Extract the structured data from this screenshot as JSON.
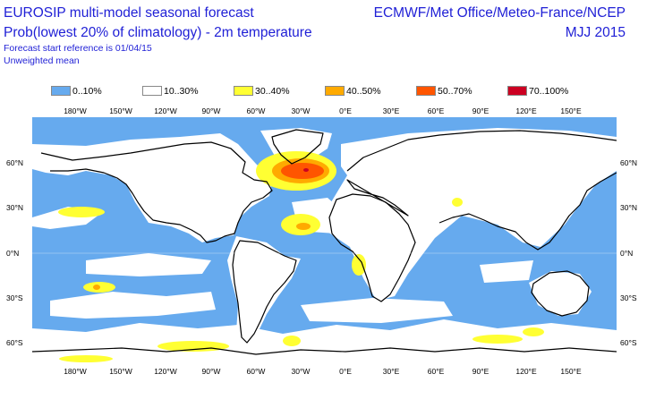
{
  "header": {
    "title": "EUROSIP multi-model seasonal forecast",
    "subtitle": "Prob(lowest 20% of climatology) - 2m temperature",
    "start_reference": "Forecast start reference is 01/04/15",
    "weighting": "Unweighted mean",
    "centres": "ECMWF/Met Office/Meteo-France/NCEP",
    "period": "MJJ 2015"
  },
  "legend": {
    "items": [
      {
        "label": "0..10%",
        "color": "#66aaee"
      },
      {
        "label": "10..30%",
        "color": "#ffffff"
      },
      {
        "label": "30..40%",
        "color": "#ffff33"
      },
      {
        "label": "40..50%",
        "color": "#ffaa00"
      },
      {
        "label": "50..70%",
        "color": "#ff5500"
      },
      {
        "label": "70..100%",
        "color": "#cc0022"
      }
    ]
  },
  "axes": {
    "lon_labels": [
      "180°W",
      "150°W",
      "120°W",
      "90°W",
      "60°W",
      "30°W",
      "0°E",
      "30°E",
      "60°E",
      "90°E",
      "120°E",
      "150°E"
    ],
    "lat_labels": [
      "60°N",
      "30°N",
      "0°N",
      "30°S",
      "60°S"
    ]
  },
  "map": {
    "ocean_color": "#66aaee",
    "land_color": "#ffffff",
    "coast_color": "#000000"
  }
}
